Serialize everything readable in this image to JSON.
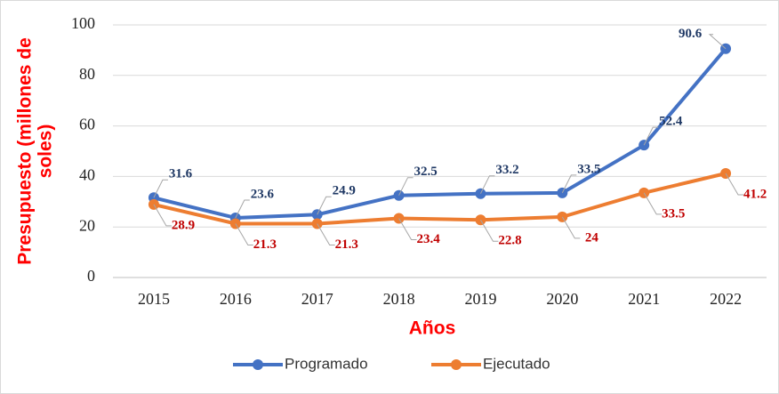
{
  "chart_data": {
    "type": "line",
    "x_label": "Años",
    "y_label": [
      "Presupuesto (millones de",
      "soles)"
    ],
    "categories": [
      "2015",
      "2016",
      "2017",
      "2018",
      "2019",
      "2020",
      "2021",
      "2022"
    ],
    "series": [
      {
        "name": "Programado",
        "color": "#4472c4",
        "label_color": "#1f3864",
        "values": [
          31.6,
          23.6,
          24.9,
          32.5,
          33.2,
          33.5,
          52.4,
          90.6
        ]
      },
      {
        "name": "Ejecutado",
        "color": "#ed7d31",
        "label_color": "#c00000",
        "values": [
          28.9,
          21.3,
          21.3,
          23.4,
          22.8,
          24,
          33.5,
          41.2
        ]
      }
    ],
    "ylim": [
      0,
      100
    ],
    "yticks": [
      0,
      20,
      40,
      60,
      80,
      100
    ],
    "grid": true,
    "legend": "bottom"
  }
}
